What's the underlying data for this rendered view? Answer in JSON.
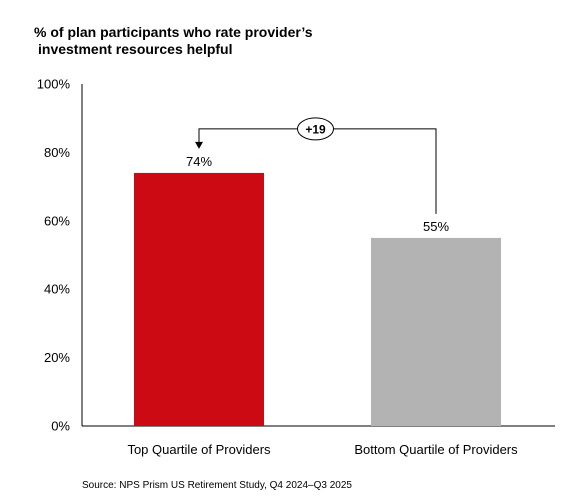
{
  "chart_data": {
    "type": "bar",
    "title_lines": [
      "% of plan participants who rate provider’s",
      "investment resources helpful"
    ],
    "categories": [
      "Top Quartile of Providers",
      "Bottom Quartile of Providers"
    ],
    "values": [
      74,
      55
    ],
    "data_labels": [
      "74%",
      "55%"
    ],
    "colors": [
      "#cc0a14",
      "#b3b3b3"
    ],
    "ylim": [
      0,
      100
    ],
    "yticks": [
      0,
      20,
      40,
      60,
      80,
      100
    ],
    "ytick_labels": [
      "0%",
      "20%",
      "40%",
      "60%",
      "80%",
      "100%"
    ],
    "grid": false,
    "annotation": {
      "label": "+19",
      "from_category": 1,
      "to_category": 0
    },
    "source": "Source: NPS Prism US Retirement Study, Q4 2024–Q3 2025"
  }
}
